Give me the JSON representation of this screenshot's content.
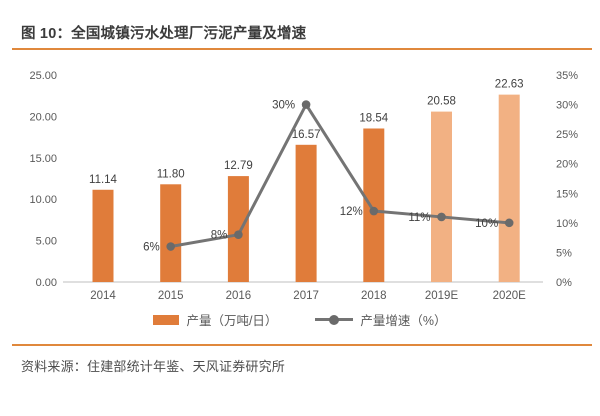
{
  "figure": {
    "title": "图 10：全国城镇污水处理厂污泥产量及增速",
    "source": "资料来源：住建部统计年鉴、天风证券研究所"
  },
  "colors": {
    "bar_actual": "#E07C3A",
    "bar_estimate": "#F2B183",
    "line": "#747474",
    "marker": "#6A6A6A",
    "rule": "#E0883C",
    "axis_line": "#BFBFBF",
    "title_text": "#3B3B3B",
    "axis_text": "#595959",
    "data_label_text": "#404040",
    "source_text": "#4D4D4D"
  },
  "chart_data": {
    "type": "bar",
    "subtype": "combo-bar-line-dual-axis",
    "title": "图 10：全国城镇污水处理厂污泥产量及增速",
    "categories": [
      "2014",
      "2015",
      "2016",
      "2017",
      "2018",
      "2019E",
      "2020E"
    ],
    "series": [
      {
        "name": "产量（万吨/日）",
        "type": "bar",
        "axis": "left",
        "values": [
          11.14,
          11.8,
          12.79,
          16.57,
          18.54,
          20.58,
          22.63
        ],
        "labels": [
          "11.14",
          "11.80",
          "12.79",
          "16.57",
          "18.54",
          "20.58",
          "22.63"
        ],
        "estimate_from_index": 5
      },
      {
        "name": "产量增速（%）",
        "type": "line",
        "axis": "right",
        "values": [
          null,
          6,
          8,
          30,
          12,
          11,
          10
        ],
        "labels": [
          null,
          "6%",
          "8%",
          "30%",
          "12%",
          "11%",
          "10%"
        ]
      }
    ],
    "left_axis": {
      "min": 0,
      "max": 25,
      "step": 5,
      "tick_labels": [
        "0.00",
        "5.00",
        "10.00",
        "15.00",
        "20.00",
        "25.00"
      ]
    },
    "right_axis": {
      "min": 0,
      "max": 35,
      "step": 5,
      "tick_labels": [
        "0%",
        "5%",
        "10%",
        "15%",
        "20%",
        "25%",
        "30%",
        "35%"
      ]
    },
    "legend": [
      {
        "label": "产量（万吨/日）",
        "swatch": "bar"
      },
      {
        "label": "产量增速（%）",
        "swatch": "line-marker"
      }
    ],
    "grid": false,
    "legend_position": "bottom"
  }
}
